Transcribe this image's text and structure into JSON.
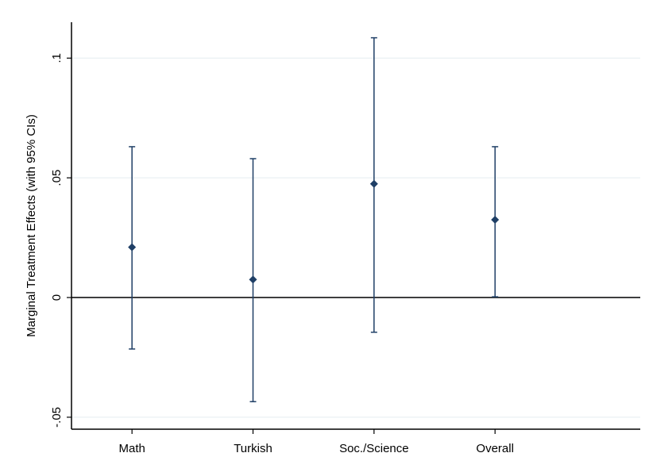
{
  "chart_data": {
    "type": "scatter",
    "title": "",
    "xlabel": "",
    "ylabel": "Marginal Treatment Effects (with 95% CIs)",
    "categories": [
      "Math",
      "Turkish",
      "Soc./Science",
      "Overall"
    ],
    "series": [
      {
        "estimates": [
          0.021,
          0.0075,
          0.0475,
          0.0325
        ],
        "ci_lower": [
          -0.0215,
          -0.0435,
          -0.0145,
          0.0003
        ],
        "ci_upper": [
          0.063,
          0.058,
          0.1085,
          0.063
        ]
      }
    ],
    "ylim": [
      -0.055,
      0.115
    ],
    "yticks": [
      -0.05,
      0,
      0.05,
      0.1
    ],
    "ytick_labels": [
      "-.05",
      "0",
      ".05",
      ".1"
    ],
    "reference_line_y": 0,
    "grid": "horizontal",
    "colors": {
      "marker": "#1f3f66",
      "errorbar": "#1f3f66",
      "grid": "#eaf0f3",
      "axis": "#000000"
    }
  }
}
